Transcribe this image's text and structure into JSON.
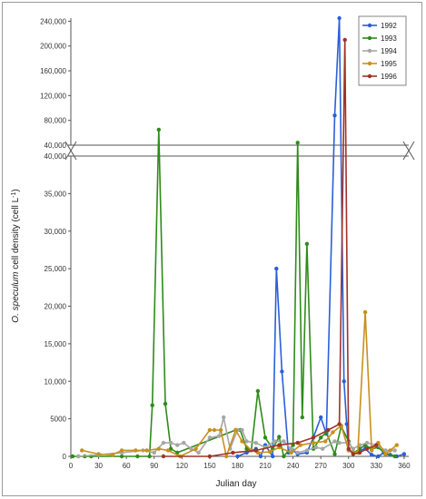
{
  "chart_data": {
    "type": "line",
    "xlabel": "Julian day",
    "ylabel_italic": "O. speculum",
    "ylabel_rest": " cell density    (cell L",
    "ylabel_sup": "-1",
    "ylabel_end": ")",
    "x_ticks": [
      0,
      30,
      60,
      90,
      120,
      150,
      180,
      210,
      240,
      270,
      300,
      330,
      360
    ],
    "xlim": [
      0,
      365
    ],
    "y_upper_ticks": [
      "40,000",
      "80,000",
      "120,000",
      "160,000",
      "200,000",
      "240,000"
    ],
    "y_upper_values": [
      40000,
      80000,
      120000,
      160000,
      200000,
      240000
    ],
    "y_upper_lim": [
      40000,
      245000
    ],
    "y_lower_ticks": [
      "0",
      "5000",
      "10,000",
      "15,000",
      "20,000",
      "25,000",
      "30,000",
      "35,000",
      "40,000"
    ],
    "y_lower_values": [
      0,
      5000,
      10000,
      15000,
      20000,
      25000,
      30000,
      35000,
      40000
    ],
    "y_lower_lim": [
      0,
      40000
    ],
    "grid": false,
    "legend_position": "top-right",
    "series": [
      {
        "name": "1992",
        "color": "#2a5fd8",
        "points": [
          [
            180,
            0
          ],
          [
            190,
            500
          ],
          [
            200,
            1000
          ],
          [
            205,
            0
          ],
          [
            210,
            1500
          ],
          [
            218,
            0
          ],
          [
            222,
            25000
          ],
          [
            228,
            11300
          ],
          [
            235,
            500
          ],
          [
            240,
            800
          ],
          [
            245,
            300
          ],
          [
            255,
            500
          ],
          [
            262,
            2500
          ],
          [
            270,
            5200
          ],
          [
            276,
            3000
          ],
          [
            285,
            88000
          ],
          [
            290,
            245000
          ],
          [
            295,
            10000
          ],
          [
            298,
            4300
          ],
          [
            300,
            800
          ],
          [
            305,
            500
          ],
          [
            312,
            800
          ],
          [
            318,
            1000
          ],
          [
            325,
            200
          ],
          [
            332,
            0
          ],
          [
            338,
            500
          ],
          [
            345,
            200
          ],
          [
            352,
            0
          ],
          [
            360,
            300
          ]
        ]
      },
      {
        "name": "1993",
        "color": "#2e8b1a",
        "points": [
          [
            2,
            0
          ],
          [
            8,
            0
          ],
          [
            15,
            0
          ],
          [
            22,
            0
          ],
          [
            55,
            0
          ],
          [
            72,
            0
          ],
          [
            85,
            0
          ],
          [
            88,
            6800
          ],
          [
            95,
            65000
          ],
          [
            102,
            7000
          ],
          [
            108,
            1000
          ],
          [
            115,
            500
          ],
          [
            178,
            3500
          ],
          [
            183,
            3500
          ],
          [
            190,
            1000
          ],
          [
            195,
            800
          ],
          [
            202,
            8700
          ],
          [
            210,
            2500
          ],
          [
            218,
            1000
          ],
          [
            225,
            2600
          ],
          [
            230,
            0
          ],
          [
            240,
            1500
          ],
          [
            245,
            44000
          ],
          [
            250,
            5200
          ],
          [
            255,
            28300
          ],
          [
            262,
            1000
          ],
          [
            270,
            2500
          ],
          [
            276,
            3200
          ],
          [
            285,
            300
          ],
          [
            292,
            4000
          ],
          [
            300,
            2000
          ],
          [
            306,
            500
          ],
          [
            312,
            1000
          ],
          [
            318,
            1500
          ],
          [
            325,
            1000
          ],
          [
            332,
            1200
          ],
          [
            340,
            300
          ],
          [
            350,
            0
          ]
        ]
      },
      {
        "name": "1994",
        "color": "#a6a6a6",
        "points": [
          [
            8,
            0
          ],
          [
            30,
            200
          ],
          [
            55,
            500
          ],
          [
            78,
            800
          ],
          [
            90,
            500
          ],
          [
            100,
            1800
          ],
          [
            108,
            1800
          ],
          [
            115,
            1500
          ],
          [
            122,
            1800
          ],
          [
            130,
            1000
          ],
          [
            138,
            500
          ],
          [
            150,
            2500
          ],
          [
            160,
            2700
          ],
          [
            165,
            5200
          ],
          [
            172,
            1000
          ],
          [
            180,
            3500
          ],
          [
            185,
            3500
          ],
          [
            190,
            2000
          ],
          [
            200,
            1800
          ],
          [
            210,
            1200
          ],
          [
            220,
            2000
          ],
          [
            230,
            2000
          ],
          [
            238,
            1000
          ],
          [
            245,
            500
          ],
          [
            255,
            800
          ],
          [
            265,
            1200
          ],
          [
            272,
            1000
          ],
          [
            285,
            2000
          ],
          [
            290,
            1800
          ],
          [
            300,
            1800
          ],
          [
            305,
            1000
          ],
          [
            312,
            1500
          ],
          [
            320,
            1800
          ],
          [
            330,
            1500
          ],
          [
            340,
            800
          ],
          [
            350,
            800
          ]
        ]
      },
      {
        "name": "1995",
        "color": "#c7901c",
        "points": [
          [
            12,
            800
          ],
          [
            30,
            300
          ],
          [
            45,
            200
          ],
          [
            55,
            800
          ],
          [
            70,
            800
          ],
          [
            82,
            800
          ],
          [
            95,
            1000
          ],
          [
            105,
            800
          ],
          [
            118,
            0
          ],
          [
            135,
            1000
          ],
          [
            150,
            3500
          ],
          [
            155,
            3500
          ],
          [
            162,
            3500
          ],
          [
            168,
            0
          ],
          [
            178,
            3500
          ],
          [
            185,
            2000
          ],
          [
            195,
            800
          ],
          [
            202,
            500
          ],
          [
            215,
            600
          ],
          [
            225,
            1200
          ],
          [
            238,
            500
          ],
          [
            248,
            1500
          ],
          [
            262,
            1800
          ],
          [
            275,
            2000
          ],
          [
            283,
            3200
          ],
          [
            292,
            4100
          ],
          [
            300,
            800
          ],
          [
            310,
            500
          ],
          [
            318,
            19200
          ],
          [
            325,
            800
          ],
          [
            332,
            1800
          ],
          [
            340,
            300
          ],
          [
            345,
            800
          ],
          [
            352,
            1500
          ]
        ]
      },
      {
        "name": "1996",
        "color": "#a03228",
        "points": [
          [
            100,
            0
          ],
          [
            150,
            0
          ],
          [
            175,
            500
          ],
          [
            200,
            800
          ],
          [
            225,
            1500
          ],
          [
            245,
            1800
          ],
          [
            262,
            2500
          ],
          [
            278,
            3500
          ],
          [
            290,
            4300
          ],
          [
            296,
            210000
          ],
          [
            300,
            1000
          ],
          [
            305,
            300
          ],
          [
            312,
            500
          ],
          [
            320,
            1000
          ],
          [
            330,
            1500
          ]
        ]
      }
    ]
  }
}
